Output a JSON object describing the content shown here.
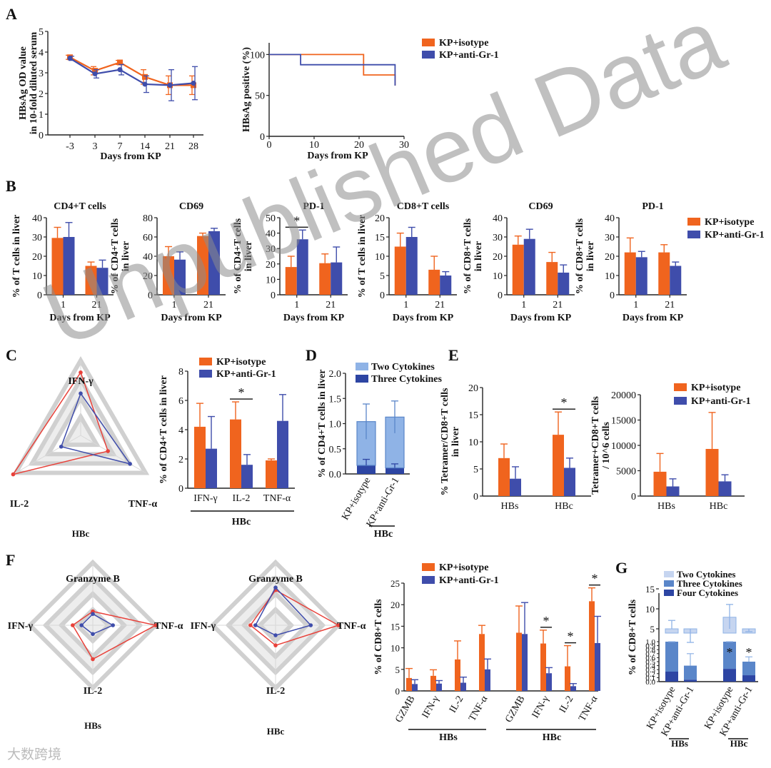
{
  "watermark": "Unpublished Data",
  "logo": "大数跨境",
  "colors": {
    "iso": "#f0641e",
    "gr1": "#3f4dab",
    "light": "#8fb3e6",
    "mid": "#5a86c9",
    "dark": "#2d45a3"
  },
  "legend": {
    "iso": "KP+isotype",
    "gr1": "KP+anti-Gr-1"
  },
  "chart_data": [
    {
      "id": "A1",
      "panel": "A",
      "type": "line",
      "ylabel": [
        "HBsAg OD value",
        "in 10-fold diluted serum"
      ],
      "xlabel": "Days from KP",
      "categories": [
        "-3",
        "3",
        "7",
        "14",
        "21",
        "28"
      ],
      "ylim": [
        0,
        5
      ],
      "yticks": [
        "0",
        "1",
        "2",
        "3",
        "4",
        "5"
      ],
      "series": [
        {
          "name": "KP+isotype",
          "values": [
            3.75,
            3.1,
            3.5,
            2.8,
            2.4,
            2.4
          ],
          "err": [
            0.1,
            0.2,
            0.1,
            0.35,
            0.45,
            0.45
          ]
        },
        {
          "name": "KP+anti-Gr-1",
          "values": [
            3.7,
            2.95,
            3.15,
            2.45,
            2.4,
            2.5
          ],
          "err": [
            0.1,
            0.2,
            0.25,
            0.4,
            0.75,
            0.8
          ]
        }
      ]
    },
    {
      "id": "A2",
      "panel": "A",
      "type": "line",
      "subtype": "survival",
      "ylabel": "HBsAg positive (%)",
      "xlabel": "Days from KP",
      "xlim": [
        0,
        30
      ],
      "xticks": [
        "0",
        "10",
        "20",
        "30"
      ],
      "ylim": [
        0,
        100
      ],
      "yticks": [
        "0",
        "50",
        "100"
      ],
      "series": [
        {
          "name": "KP+isotype",
          "steps": [
            [
              0,
              100
            ],
            [
              21,
              100
            ],
            [
              21,
              75
            ],
            [
              28,
              75
            ],
            [
              28,
              62
            ]
          ]
        },
        {
          "name": "KP+anti-Gr-1",
          "steps": [
            [
              0,
              100
            ],
            [
              7,
              100
            ],
            [
              7,
              87.5
            ],
            [
              28,
              87.5
            ],
            [
              28,
              62
            ]
          ]
        }
      ]
    },
    {
      "id": "B1",
      "panel": "B",
      "type": "bar",
      "title": "CD4+T cells",
      "ylabel": [
        "% of T cells in liver"
      ],
      "xlabel": "Days from KP",
      "categories": [
        "1",
        "21"
      ],
      "ylim": [
        0,
        40
      ],
      "yticks": [
        "0",
        "10",
        "20",
        "30",
        "40"
      ],
      "series": [
        {
          "name": "KP+isotype",
          "values": [
            29.5,
            15
          ],
          "err": [
            5.5,
            2
          ]
        },
        {
          "name": "KP+anti-Gr-1",
          "values": [
            30,
            14
          ],
          "err": [
            7.5,
            4
          ]
        }
      ]
    },
    {
      "id": "B2",
      "panel": "B",
      "type": "bar",
      "title": "CD69",
      "ylabel": [
        "% of CD4+T cells",
        "in liver"
      ],
      "xlabel": "Days from KP",
      "categories": [
        "1",
        "21"
      ],
      "ylim": [
        0,
        80
      ],
      "yticks": [
        "0",
        "20",
        "40",
        "60",
        "80"
      ],
      "series": [
        {
          "name": "KP+isotype",
          "values": [
            40,
            61
          ],
          "err": [
            10,
            3
          ]
        },
        {
          "name": "KP+anti-Gr-1",
          "values": [
            36.5,
            66
          ],
          "err": [
            8,
            3
          ]
        }
      ]
    },
    {
      "id": "B3",
      "panel": "B",
      "type": "bar",
      "title": "PD-1",
      "ylabel": [
        "% of CD4+T cells",
        "in liver"
      ],
      "xlabel": "Days from KP",
      "categories": [
        "1",
        "21"
      ],
      "ylim": [
        0,
        50
      ],
      "yticks": [
        "0",
        "10",
        "20",
        "30",
        "40",
        "50"
      ],
      "series": [
        {
          "name": "KP+isotype",
          "values": [
            18,
            20.5
          ],
          "err": [
            7,
            6
          ]
        },
        {
          "name": "KP+anti-Gr-1",
          "values": [
            36,
            21
          ],
          "err": [
            6,
            10
          ]
        }
      ],
      "annotations": [
        {
          "text": "*",
          "group": 0
        }
      ]
    },
    {
      "id": "B4",
      "panel": "B",
      "type": "bar",
      "title": "CD8+T cells",
      "ylabel": [
        "% of T cells in liver"
      ],
      "xlabel": "Days from KP",
      "categories": [
        "1",
        "21"
      ],
      "ylim": [
        0,
        20
      ],
      "yticks": [
        "0",
        "5",
        "10",
        "15",
        "20"
      ],
      "series": [
        {
          "name": "KP+isotype",
          "values": [
            12.5,
            6.5
          ],
          "err": [
            3.5,
            3.5
          ]
        },
        {
          "name": "KP+anti-Gr-1",
          "values": [
            15,
            5
          ],
          "err": [
            2.5,
            1
          ]
        }
      ]
    },
    {
      "id": "B5",
      "panel": "B",
      "type": "bar",
      "title": "CD69",
      "ylabel": [
        "% of CD8+T cells",
        "in liver"
      ],
      "xlabel": "Days from KP",
      "categories": [
        "1",
        "21"
      ],
      "ylim": [
        0,
        40
      ],
      "yticks": [
        "0",
        "10",
        "20",
        "30",
        "40"
      ],
      "series": [
        {
          "name": "KP+isotype",
          "values": [
            26,
            17
          ],
          "err": [
            4.5,
            5
          ]
        },
        {
          "name": "KP+anti-Gr-1",
          "values": [
            29,
            11.5
          ],
          "err": [
            5,
            4
          ]
        }
      ]
    },
    {
      "id": "B6",
      "panel": "B",
      "type": "bar",
      "title": "PD-1",
      "ylabel": [
        "% of CD8+T cells",
        "in liver"
      ],
      "xlabel": "Days from KP",
      "categories": [
        "1",
        "21"
      ],
      "ylim": [
        0,
        40
      ],
      "yticks": [
        "0",
        "10",
        "20",
        "30",
        "40"
      ],
      "series": [
        {
          "name": "KP+isotype",
          "values": [
            22,
            22
          ],
          "err": [
            7.5,
            4
          ]
        },
        {
          "name": "KP+anti-Gr-1",
          "values": [
            19.5,
            15
          ],
          "err": [
            3,
            2
          ]
        }
      ]
    },
    {
      "id": "C1",
      "panel": "C",
      "type": "radar",
      "caption": "HBc",
      "axes": [
        "IFN-γ",
        "TNF-α",
        "IL-2"
      ],
      "max": 5,
      "series": [
        {
          "name": "KP+isotype",
          "values": [
            4.2,
            2.1,
            5.2
          ]
        },
        {
          "name": "KP+anti-Gr-1",
          "values": [
            2.8,
            3.8,
            1.5
          ]
        }
      ]
    },
    {
      "id": "C2",
      "panel": "C",
      "type": "bar",
      "ylabel": [
        "% of CD4+T cells in liver"
      ],
      "xlabel": "HBc",
      "categories": [
        "IFN-γ",
        "IL-2",
        "TNF-α"
      ],
      "ylim": [
        0,
        8
      ],
      "yticks": [
        "0",
        "2",
        "4",
        "6",
        "8"
      ],
      "series": [
        {
          "name": "KP+isotype",
          "values": [
            4.2,
            4.7,
            1.9
          ],
          "err": [
            1.6,
            1.2,
            0.1
          ]
        },
        {
          "name": "KP+anti-Gr-1",
          "values": [
            2.7,
            1.6,
            4.6
          ],
          "err": [
            2.2,
            0.7,
            1.8
          ]
        }
      ],
      "annotations": [
        {
          "text": "*",
          "group": 1
        }
      ]
    },
    {
      "id": "D",
      "panel": "D",
      "type": "bar",
      "stacked": true,
      "ylabel": [
        "% of CD4+T cells in liver"
      ],
      "xlabel": "HBc",
      "categories": [
        "KP+isotype",
        "KP+anti-Gr-1"
      ],
      "ylim": [
        0,
        2.0
      ],
      "yticks": [
        "0.0",
        "0.5",
        "1.0",
        "1.5",
        "2.0"
      ],
      "series": [
        {
          "name": "Three Cytokines",
          "values": [
            0.17,
            0.12
          ],
          "err": [
            0.12,
            0.08
          ]
        },
        {
          "name": "Two Cytokines",
          "values": [
            0.87,
            1.01
          ],
          "err": [
            0.35,
            0.32
          ]
        }
      ]
    },
    {
      "id": "E1",
      "panel": "E",
      "type": "bar",
      "ylabel": [
        "% Tetramer/CD8+T cells",
        "in liver"
      ],
      "categories": [
        "HBs",
        "HBc"
      ],
      "ylim": [
        0,
        20
      ],
      "yticks": [
        "0",
        "5",
        "10",
        "15",
        "20"
      ],
      "series": [
        {
          "name": "KP+isotype",
          "values": [
            7,
            11.3
          ],
          "err": [
            2.6,
            4.2
          ]
        },
        {
          "name": "KP+anti-Gr-1",
          "values": [
            3.2,
            5.2
          ],
          "err": [
            2.2,
            1.8
          ]
        }
      ],
      "annotations": [
        {
          "text": "*",
          "group": 1
        }
      ]
    },
    {
      "id": "E2",
      "panel": "E",
      "type": "bar",
      "ylabel": [
        "Tetramer+CD8+T cells",
        "/ 10^6 cells"
      ],
      "categories": [
        "HBs",
        "HBc"
      ],
      "ylim": [
        0,
        20000
      ],
      "yticks": [
        "0",
        "5000",
        "10000",
        "15000",
        "20000"
      ],
      "series": [
        {
          "name": "KP+isotype",
          "values": [
            4800,
            9300
          ],
          "err": [
            3600,
            7200
          ]
        },
        {
          "name": "KP+anti-Gr-1",
          "values": [
            1900,
            2900
          ],
          "err": [
            1500,
            1300
          ]
        }
      ]
    },
    {
      "id": "F1",
      "panel": "F",
      "type": "radar",
      "caption": "HBs",
      "axes": [
        "Granzyme B",
        "TNF-α",
        "IL-2",
        "IFN-γ"
      ],
      "max": 5,
      "series": [
        {
          "name": "KP+isotype",
          "values": [
            1.1,
            5.0,
            2.7,
            1.6
          ]
        },
        {
          "name": "KP+anti-Gr-1",
          "values": [
            0.9,
            1.6,
            0.7,
            0.9
          ]
        }
      ]
    },
    {
      "id": "F2",
      "panel": "F",
      "type": "radar",
      "caption": "HBc",
      "axes": [
        "Granzyme B",
        "TNF-α",
        "IL-2",
        "IFN-γ"
      ],
      "max": 5,
      "series": [
        {
          "name": "KP+isotype",
          "values": [
            2.8,
            5.0,
            1.6,
            2.0
          ]
        },
        {
          "name": "KP+anti-Gr-1",
          "values": [
            3.0,
            2.8,
            0.8,
            1.6
          ]
        }
      ]
    },
    {
      "id": "F3",
      "panel": "F",
      "type": "bar",
      "ylabel": [
        "% of CD8+T cells"
      ],
      "categories": [
        "GZMB",
        "IFN-γ",
        "IL-2",
        "TNF-α",
        "GZMB",
        "IFN-γ",
        "IL-2",
        "TNF-α"
      ],
      "groups": [
        {
          "label": "HBs",
          "from": 0,
          "to": 3
        },
        {
          "label": "HBc",
          "from": 4,
          "to": 7
        }
      ],
      "ylim": [
        0,
        25
      ],
      "yticks": [
        "0",
        "5",
        "10",
        "15",
        "20",
        "25"
      ],
      "series": [
        {
          "name": "KP+isotype",
          "values": [
            3,
            3.5,
            7.3,
            13.2,
            13.5,
            11,
            5.7,
            20.8
          ],
          "err": [
            2.2,
            1.4,
            4.3,
            2,
            6.2,
            3.1,
            4.8,
            3.1
          ]
        },
        {
          "name": "KP+anti-Gr-1",
          "values": [
            1.6,
            1.7,
            1.9,
            5,
            13.2,
            4.1,
            1.1,
            11.1
          ],
          "err": [
            1,
            0.7,
            1.3,
            2.4,
            7.3,
            1.3,
            0.6,
            6.2
          ]
        }
      ],
      "annotations": [
        {
          "text": "*",
          "group": 5
        },
        {
          "text": "*",
          "group": 6
        },
        {
          "text": "*",
          "group": 7
        }
      ]
    },
    {
      "id": "G",
      "panel": "G",
      "type": "bar",
      "stacked": true,
      "ylabel": [
        "% of CD8+T cells"
      ],
      "categories": [
        "KP+isotype",
        "KP+anti-Gr-1",
        "KP+isotype",
        "KP+anti-Gr-1"
      ],
      "groups": [
        {
          "label": "HBs",
          "from": 0,
          "to": 1
        },
        {
          "label": "HBc",
          "from": 2,
          "to": 3
        }
      ],
      "yticks_upper": [
        "5",
        "10",
        "15"
      ],
      "yticks_lower": [
        "0.0",
        "0.1",
        "0.2",
        "0.3",
        "0.4",
        "0.5",
        "0.6",
        "0.7",
        "0.8",
        "0.9",
        "1.0"
      ],
      "series": [
        {
          "name": "Four Cytokines",
          "values": [
            0.25,
            0.05,
            0.32,
            0.16
          ],
          "err": [
            0.2,
            0.05,
            0.08,
            0.06
          ]
        },
        {
          "name": "Three Cytokines",
          "values": [
            0.75,
            0.35,
            0.68,
            0.34
          ],
          "err": [
            0.4,
            0.3,
            0.2,
            0.12
          ]
        },
        {
          "name": "Two Cytokines",
          "values": [
            3.9,
            0.8,
            6.9,
            2.6
          ],
          "err": [
            2.2,
            0.4,
            3.2,
            1.2
          ]
        }
      ],
      "annotations": [
        {
          "text": "*",
          "group": 2
        },
        {
          "text": "*",
          "group": 3
        }
      ]
    }
  ],
  "text": {
    "letters": [
      "A",
      "B",
      "C",
      "D",
      "E",
      "F",
      "G"
    ],
    "c2_legend": [
      "KP+isotype",
      "KP+anti-Gr-1"
    ],
    "d_legend": [
      "Two Cytokines",
      "Three Cytokines"
    ],
    "g_legend": [
      "Two Cytokines",
      "Three Cytokines",
      "Four Cytokines"
    ]
  }
}
